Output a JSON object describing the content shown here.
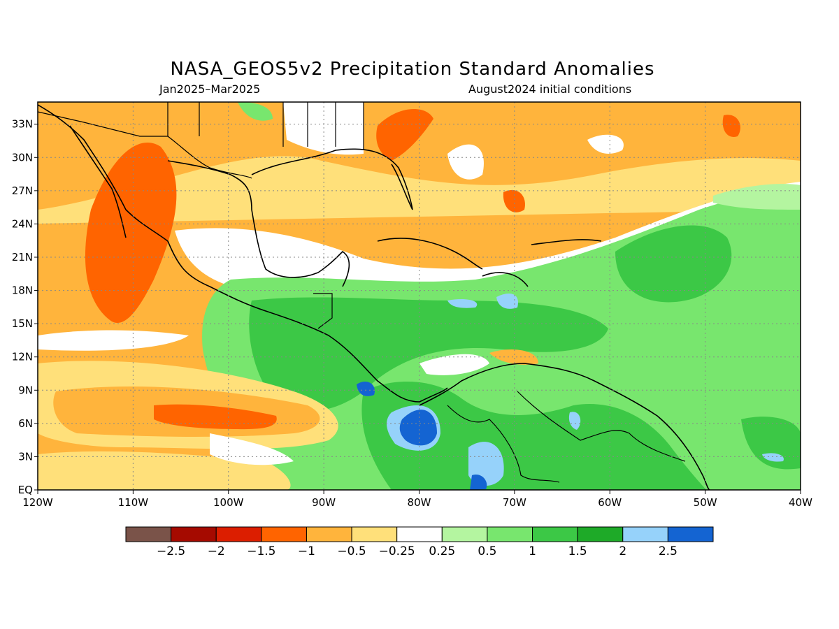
{
  "header": {
    "title": "NASA_GEOS5v2 Precipitation Standard Anomalies",
    "period": "Jan2025–Mar2025",
    "init": "August2024 initial conditions"
  },
  "map": {
    "lon_range": [
      -120,
      -40
    ],
    "lat_range": [
      0,
      35
    ],
    "lon_ticks": [
      "120W",
      "110W",
      "100W",
      "90W",
      "80W",
      "70W",
      "60W",
      "50W",
      "40W"
    ],
    "lat_ticks": [
      "EQ",
      "3N",
      "6N",
      "9N",
      "12N",
      "15N",
      "18N",
      "21N",
      "24N",
      "27N",
      "30N",
      "33N"
    ],
    "grid": "dotted"
  },
  "colorbar": {
    "labels": [
      "−2.5",
      "−2",
      "−1.5",
      "−1",
      "−0.5",
      "−0.25",
      "0.25",
      "0.5",
      "1",
      "1.5",
      "2",
      "2.5"
    ],
    "colors": [
      "#7a5349",
      "#a50a00",
      "#dc1e00",
      "#ff6400",
      "#ffb43c",
      "#ffe07a",
      "#ffffff",
      "#b4f5a0",
      "#78e66e",
      "#3cc846",
      "#1eaa28",
      "#96d2fa",
      "#1464d2"
    ]
  }
}
